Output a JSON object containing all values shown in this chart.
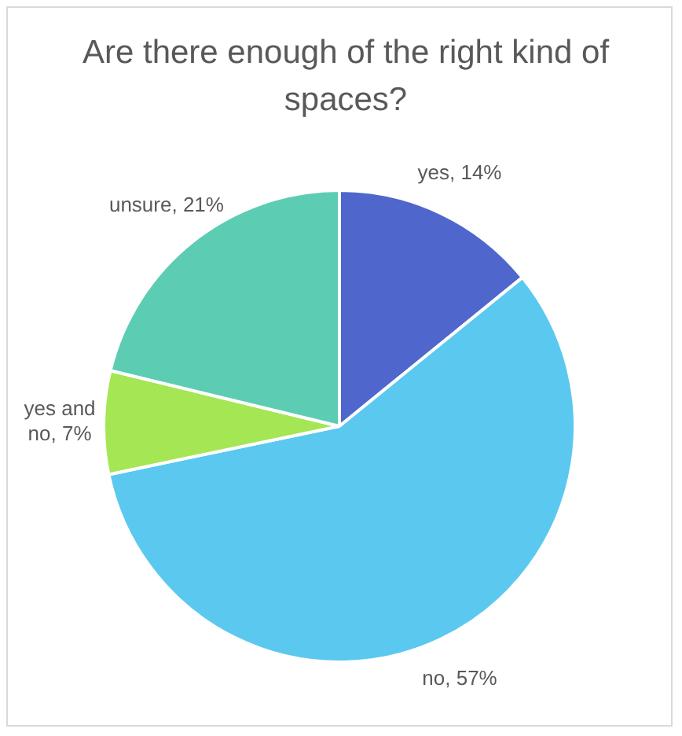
{
  "chart_data": {
    "type": "pie",
    "title": "Are there enough of the right kind of spaces?",
    "categories": [
      "yes",
      "no",
      "yes and no",
      "unsure"
    ],
    "values": [
      14,
      57,
      7,
      21
    ],
    "colors": [
      "#4f66cc",
      "#5bc8f0",
      "#a5e655",
      "#5ccdb3"
    ],
    "value_labels": [
      "14%",
      "57%",
      "7%",
      "21%"
    ],
    "legend": false
  }
}
